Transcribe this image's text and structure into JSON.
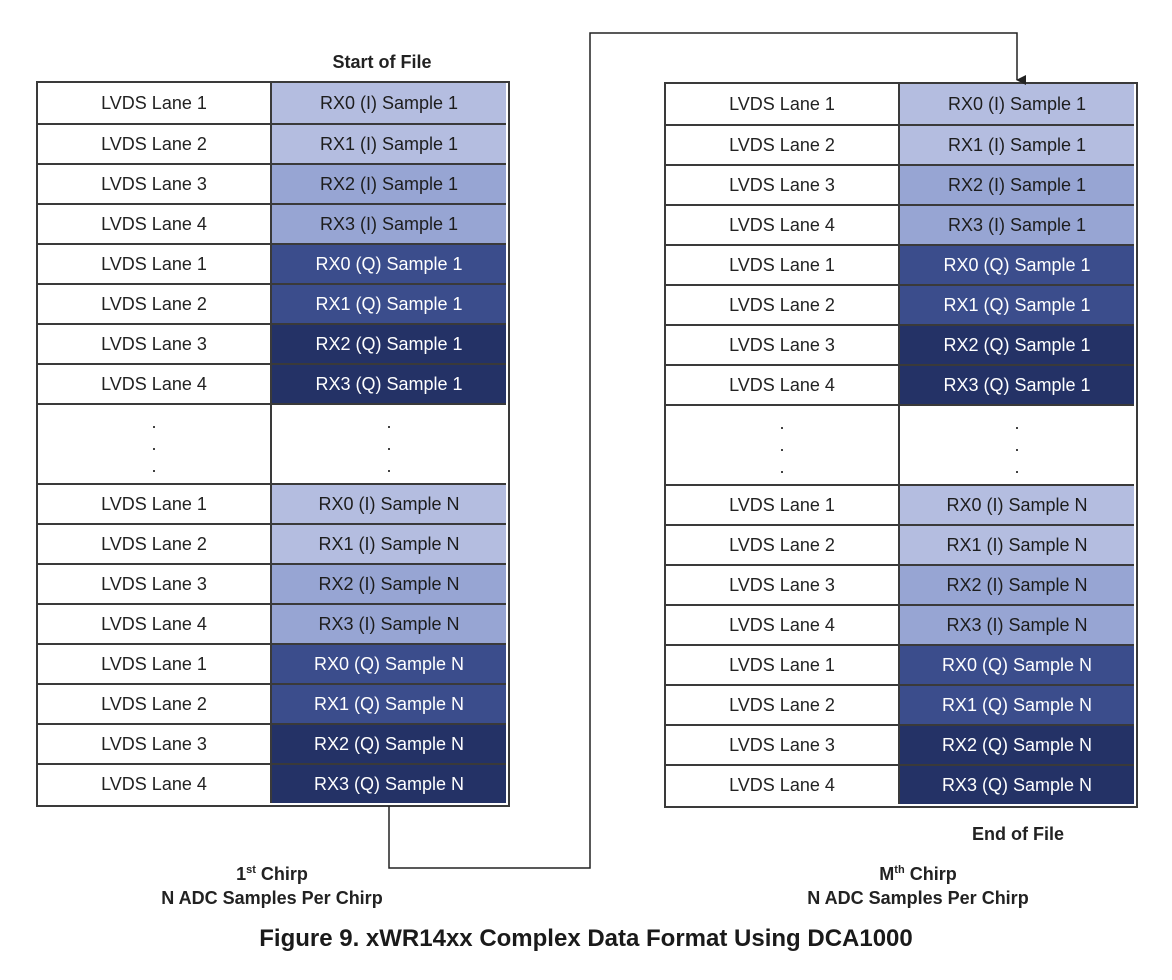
{
  "labels": {
    "start": "Start of File",
    "end": "End of File",
    "caption": "Figure 9. xWR14xx Complex Data Format Using DCA1000",
    "left_chirp_num": "1",
    "left_chirp_sup": "st",
    "left_chirp_word": "Chirp",
    "right_chirp_num": "M",
    "right_chirp_sup": "th",
    "right_chirp_word": "Chirp",
    "samples_line": "N ADC Samples Per Chirp"
  },
  "rows": [
    {
      "lane": "LVDS Lane 1",
      "rx": "RX0 (I) Sample 1"
    },
    {
      "lane": "LVDS Lane 2",
      "rx": "RX1 (I) Sample 1"
    },
    {
      "lane": "LVDS Lane 3",
      "rx": "RX2 (I) Sample 1"
    },
    {
      "lane": "LVDS Lane 4",
      "rx": "RX3 (I) Sample 1"
    },
    {
      "lane": "LVDS Lane 1",
      "rx": "RX0 (Q) Sample 1"
    },
    {
      "lane": "LVDS Lane 2",
      "rx": "RX1 (Q) Sample 1"
    },
    {
      "lane": "LVDS Lane 3",
      "rx": "RX2 (Q) Sample 1"
    },
    {
      "lane": "LVDS Lane 4",
      "rx": "RX3 (Q) Sample 1"
    },
    {
      "lane": "LVDS Lane 1",
      "rx": "RX0 (I) Sample N"
    },
    {
      "lane": "LVDS Lane 2",
      "rx": "RX1 (I) Sample N"
    },
    {
      "lane": "LVDS Lane 3",
      "rx": "RX2 (I) Sample N"
    },
    {
      "lane": "LVDS Lane 4",
      "rx": "RX3 (I) Sample N"
    },
    {
      "lane": "LVDS Lane 1",
      "rx": "RX0 (Q) Sample N"
    },
    {
      "lane": "LVDS Lane 2",
      "rx": "RX1 (Q) Sample N"
    },
    {
      "lane": "LVDS Lane 3",
      "rx": "RX2 (Q) Sample N"
    },
    {
      "lane": "LVDS Lane 4",
      "rx": "RX3 (Q) Sample N"
    }
  ],
  "colors": {
    "i_light": "#b4bde0",
    "i_mid": "#97a5d3",
    "q_mid": "#3b4d8c",
    "q_dark": "#243266",
    "border": "#3a3a3a"
  }
}
